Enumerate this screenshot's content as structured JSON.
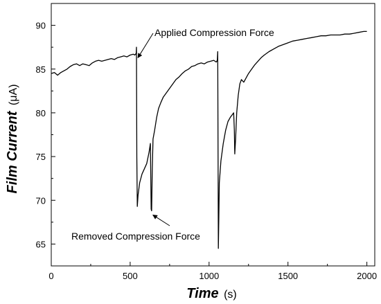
{
  "chart_data": {
    "type": "line",
    "title": "",
    "xlabel": {
      "main": "Time",
      "unit": "(s)"
    },
    "ylabel": {
      "main": "Film Current",
      "unit": "(μA)"
    },
    "xlim": [
      0,
      2050
    ],
    "ylim": [
      62.5,
      92.5
    ],
    "x_ticks": [
      0,
      500,
      1000,
      1500,
      2000
    ],
    "y_ticks": [
      65,
      70,
      75,
      80,
      85,
      90
    ],
    "grid": false,
    "series": [
      {
        "points": [
          [
            0,
            84.5
          ],
          [
            20,
            84.6
          ],
          [
            40,
            84.3
          ],
          [
            60,
            84.6
          ],
          [
            80,
            84.8
          ],
          [
            100,
            85.0
          ],
          [
            120,
            85.3
          ],
          [
            140,
            85.5
          ],
          [
            160,
            85.6
          ],
          [
            180,
            85.4
          ],
          [
            200,
            85.6
          ],
          [
            220,
            85.5
          ],
          [
            240,
            85.4
          ],
          [
            260,
            85.7
          ],
          [
            280,
            85.9
          ],
          [
            300,
            86.0
          ],
          [
            320,
            85.9
          ],
          [
            340,
            86.0
          ],
          [
            360,
            86.1
          ],
          [
            380,
            86.2
          ],
          [
            400,
            86.1
          ],
          [
            420,
            86.3
          ],
          [
            440,
            86.4
          ],
          [
            460,
            86.5
          ],
          [
            480,
            86.4
          ],
          [
            500,
            86.6
          ],
          [
            520,
            86.7
          ],
          [
            530,
            86.6
          ],
          [
            538,
            86.8
          ],
          [
            540,
            87.5
          ],
          [
            542,
            75.0
          ],
          [
            545,
            69.3
          ],
          [
            550,
            70.6
          ],
          [
            560,
            72.0
          ],
          [
            575,
            73.0
          ],
          [
            590,
            73.6
          ],
          [
            605,
            74.2
          ],
          [
            620,
            75.5
          ],
          [
            628,
            76.5
          ],
          [
            633,
            69.0
          ],
          [
            636,
            68.8
          ],
          [
            640,
            73.5
          ],
          [
            645,
            77.0
          ],
          [
            655,
            78.0
          ],
          [
            668,
            79.5
          ],
          [
            680,
            80.5
          ],
          [
            695,
            81.2
          ],
          [
            710,
            81.8
          ],
          [
            730,
            82.3
          ],
          [
            750,
            82.8
          ],
          [
            770,
            83.3
          ],
          [
            790,
            83.8
          ],
          [
            810,
            84.1
          ],
          [
            830,
            84.5
          ],
          [
            850,
            84.8
          ],
          [
            870,
            85.0
          ],
          [
            890,
            85.3
          ],
          [
            910,
            85.4
          ],
          [
            930,
            85.6
          ],
          [
            950,
            85.7
          ],
          [
            970,
            85.6
          ],
          [
            990,
            85.8
          ],
          [
            1010,
            85.9
          ],
          [
            1030,
            86.0
          ],
          [
            1045,
            85.8
          ],
          [
            1052,
            86.0
          ],
          [
            1055,
            87.0
          ],
          [
            1057,
            75.0
          ],
          [
            1059,
            64.5
          ],
          [
            1062,
            68.0
          ],
          [
            1065,
            72.0
          ],
          [
            1075,
            74.5
          ],
          [
            1090,
            76.5
          ],
          [
            1105,
            78.0
          ],
          [
            1120,
            79.0
          ],
          [
            1135,
            79.5
          ],
          [
            1148,
            79.8
          ],
          [
            1156,
            80.0
          ],
          [
            1160,
            78.0
          ],
          [
            1163,
            75.3
          ],
          [
            1168,
            77.0
          ],
          [
            1175,
            80.0
          ],
          [
            1185,
            82.0
          ],
          [
            1195,
            83.3
          ],
          [
            1205,
            83.8
          ],
          [
            1220,
            83.5
          ],
          [
            1235,
            84.0
          ],
          [
            1250,
            84.5
          ],
          [
            1270,
            85.0
          ],
          [
            1290,
            85.5
          ],
          [
            1310,
            85.9
          ],
          [
            1330,
            86.3
          ],
          [
            1350,
            86.6
          ],
          [
            1380,
            87.0
          ],
          [
            1410,
            87.3
          ],
          [
            1440,
            87.6
          ],
          [
            1470,
            87.8
          ],
          [
            1500,
            88.0
          ],
          [
            1530,
            88.2
          ],
          [
            1560,
            88.3
          ],
          [
            1590,
            88.4
          ],
          [
            1620,
            88.5
          ],
          [
            1650,
            88.6
          ],
          [
            1680,
            88.7
          ],
          [
            1710,
            88.8
          ],
          [
            1740,
            88.8
          ],
          [
            1770,
            88.9
          ],
          [
            1800,
            88.9
          ],
          [
            1830,
            88.9
          ],
          [
            1860,
            89.0
          ],
          [
            1890,
            89.0
          ],
          [
            1920,
            89.1
          ],
          [
            1950,
            89.2
          ],
          [
            1980,
            89.3
          ],
          [
            2000,
            89.3
          ]
        ]
      }
    ],
    "annotations": [
      {
        "text": "Applied Compression Force",
        "target": [
          540,
          87.4
        ]
      },
      {
        "text": "Removed Compression Force",
        "target": [
          635,
          68.8
        ]
      }
    ]
  }
}
